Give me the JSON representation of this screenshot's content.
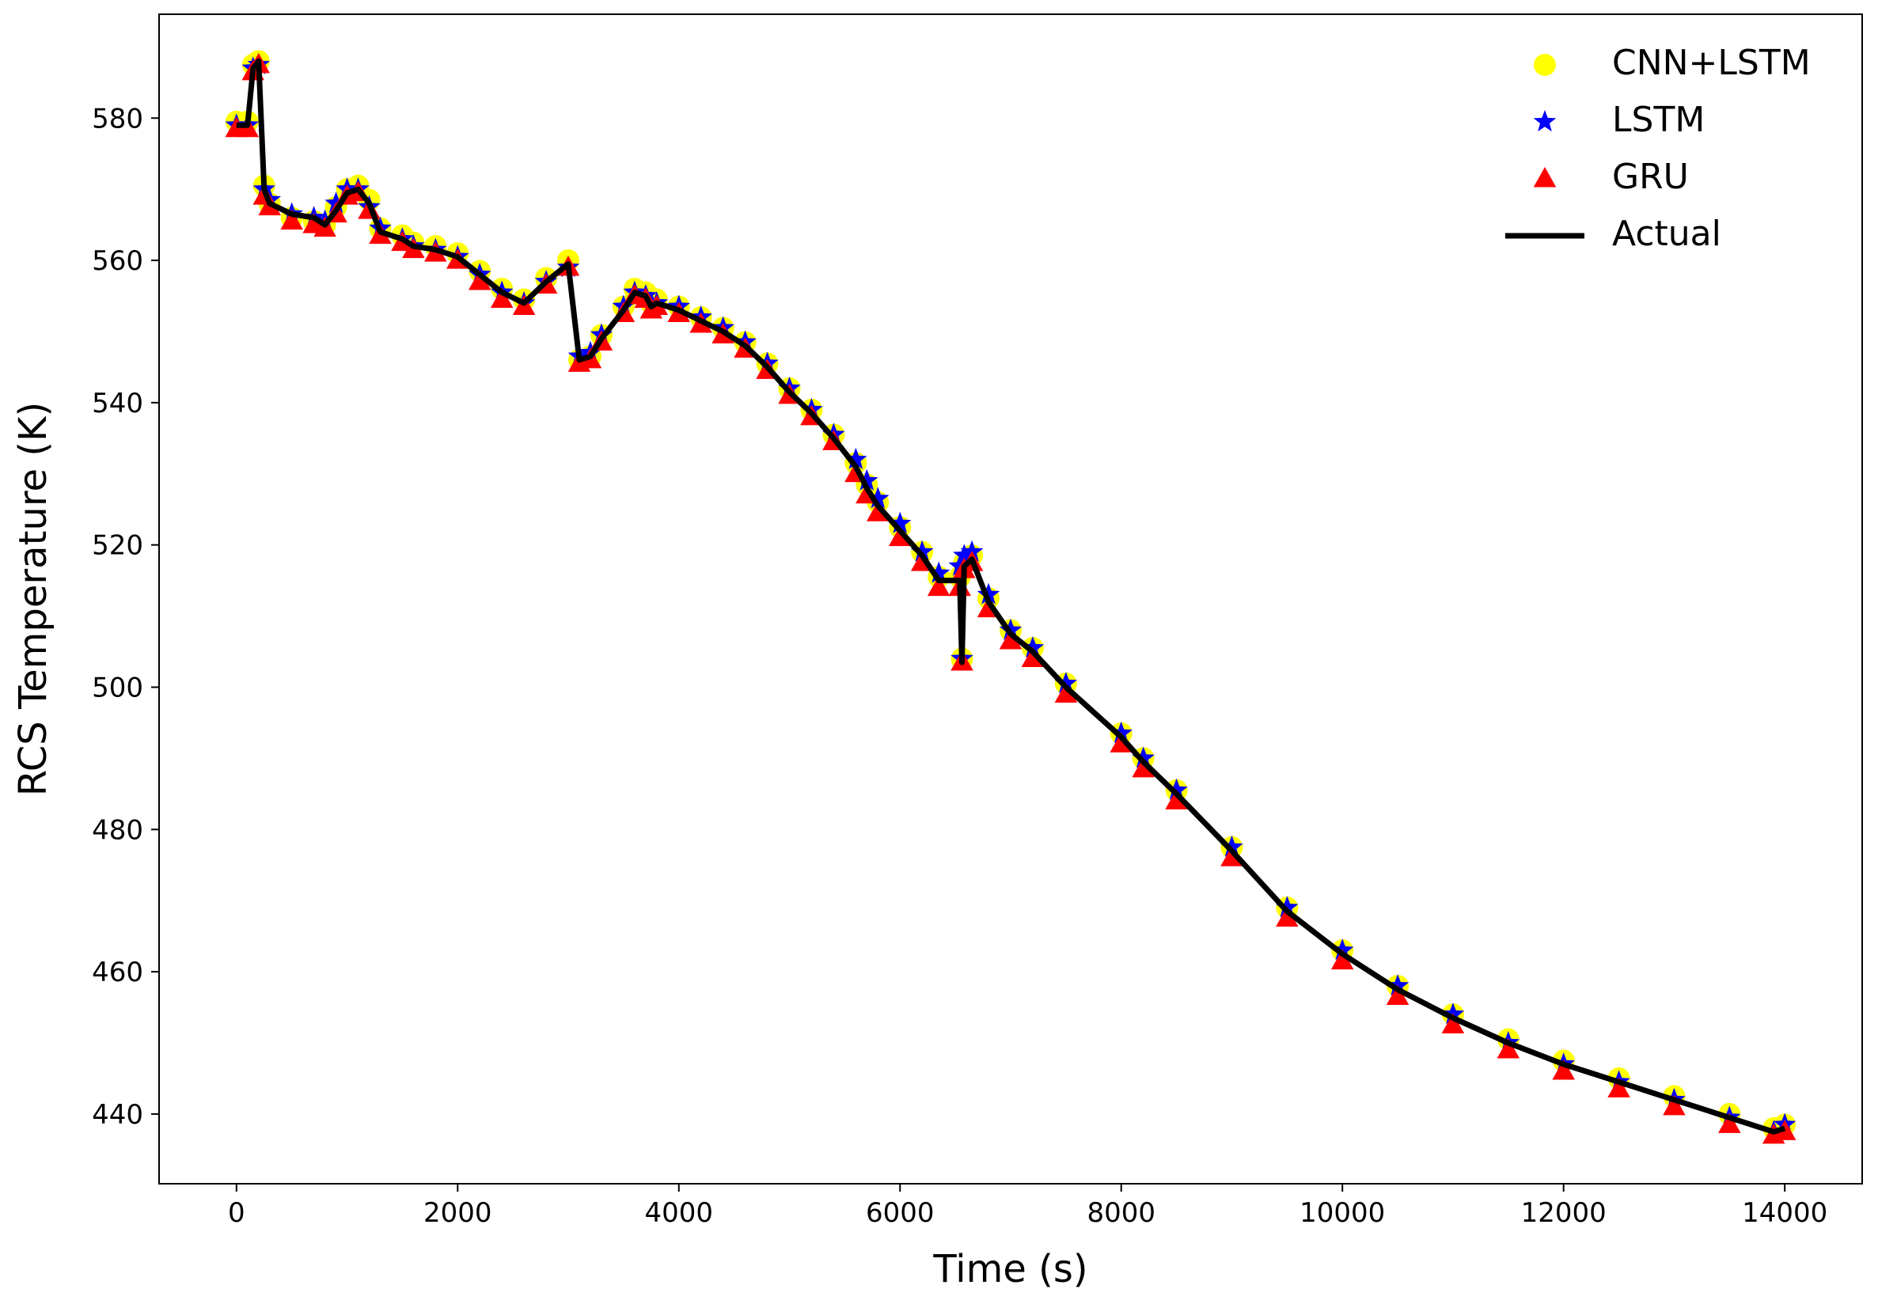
{
  "chart_data": {
    "type": "line",
    "x_label": "Time (s)",
    "y_label": "RCS Temperature (K)",
    "xlim": [
      -700,
      14700
    ],
    "ylim": [
      430.2,
      594.6
    ],
    "xticks": [
      0,
      2000,
      4000,
      6000,
      8000,
      10000,
      12000,
      14000
    ],
    "yticks": [
      440,
      460,
      480,
      500,
      520,
      540,
      560,
      580
    ],
    "legend": "upper right",
    "x": [
      0,
      100,
      150,
      200,
      250,
      300,
      500,
      700,
      800,
      900,
      1000,
      1100,
      1200,
      1300,
      1500,
      1600,
      1800,
      2000,
      2200,
      2400,
      2600,
      2800,
      3000,
      3100,
      3200,
      3300,
      3500,
      3600,
      3700,
      3750,
      3800,
      4000,
      4200,
      4400,
      4600,
      4800,
      5000,
      5200,
      5400,
      5600,
      5700,
      5800,
      6000,
      6200,
      6350,
      6540,
      6560,
      6580,
      6650,
      6800,
      7000,
      7200,
      7500,
      8000,
      8200,
      8500,
      9000,
      9500,
      10000,
      10500,
      11000,
      11500,
      12000,
      12500,
      13000,
      13500,
      13900,
      14000
    ],
    "series": [
      {
        "name": "CNN+LSTM",
        "color": "#ffff00",
        "marker": "circle",
        "values": [
          579.5,
          579.5,
          587.5,
          588,
          570.5,
          568,
          566,
          565.5,
          565,
          567.5,
          570,
          570.5,
          568.5,
          564.5,
          563.5,
          562.5,
          562,
          561,
          558.5,
          556,
          554.5,
          557.5,
          560,
          546,
          546.5,
          549.5,
          553.5,
          556,
          555.5,
          554,
          554.5,
          553.5,
          552,
          550.5,
          548.5,
          545.5,
          542,
          539,
          535.5,
          531.5,
          528.5,
          526,
          522.5,
          519,
          515.5,
          515.5,
          504,
          517.5,
          518.5,
          512.5,
          508,
          505.5,
          500.5,
          493.5,
          490,
          485.5,
          477.5,
          469,
          463,
          458,
          454,
          450.5,
          447.5,
          445,
          442.5,
          440,
          438,
          438.5
        ]
      },
      {
        "name": "LSTM",
        "color": "#0000ff",
        "marker": "star",
        "values": [
          579,
          579,
          587,
          587.5,
          570,
          568.5,
          566.5,
          566,
          565.5,
          568,
          570,
          570,
          567.5,
          564.5,
          563,
          562,
          561.5,
          560.5,
          558,
          555.5,
          554,
          557,
          559,
          546.5,
          547,
          549.5,
          553.5,
          555.5,
          555,
          554,
          554,
          553.5,
          552,
          550.5,
          548.5,
          545.5,
          542,
          539,
          535.5,
          532,
          529,
          526.5,
          523,
          519,
          516,
          517,
          504,
          518.5,
          519,
          513,
          508,
          505.5,
          500.5,
          493.5,
          490,
          485.5,
          477.5,
          469,
          463,
          458,
          454,
          450,
          447,
          444.5,
          442,
          439.5,
          437.5,
          438.5
        ]
      },
      {
        "name": "GRU",
        "color": "#ff0000",
        "marker": "triangle",
        "values": [
          578.5,
          578.5,
          586.5,
          587.5,
          569,
          567.5,
          565.5,
          565,
          564.5,
          566.5,
          569,
          569.5,
          567,
          563.5,
          562.5,
          561.5,
          561,
          560,
          557,
          554.5,
          553.5,
          556.5,
          559,
          545.5,
          546,
          548.5,
          552.5,
          555,
          554.5,
          553,
          553.5,
          552.5,
          551,
          549.5,
          547.5,
          544.5,
          541,
          538,
          534.5,
          530,
          527,
          524.5,
          521,
          517.5,
          514,
          514,
          503.5,
          516.5,
          517.5,
          511,
          506.5,
          504,
          499,
          492,
          488.5,
          484,
          476,
          467.5,
          461.5,
          456.5,
          452.5,
          449,
          446,
          443.5,
          441,
          438.5,
          437,
          437.5
        ]
      },
      {
        "name": "Actual",
        "color": "#000000",
        "marker": "line",
        "values": [
          579,
          579,
          587,
          588,
          570,
          568,
          566.5,
          566,
          565,
          567,
          569.5,
          570,
          568,
          564,
          563,
          562,
          561.5,
          560.5,
          558,
          555.5,
          554,
          557,
          559.5,
          546,
          546.5,
          549,
          553,
          555.5,
          555,
          553.5,
          554,
          553,
          551.5,
          550,
          548,
          545,
          541.5,
          538.5,
          535,
          531,
          528,
          525.5,
          522,
          518.5,
          515,
          515,
          503.5,
          517,
          518,
          512,
          507.5,
          505,
          500,
          493,
          489.5,
          485,
          477,
          468.5,
          462.5,
          457.5,
          453.5,
          450,
          447,
          444.5,
          442,
          439.5,
          437.5,
          438
        ]
      }
    ]
  }
}
